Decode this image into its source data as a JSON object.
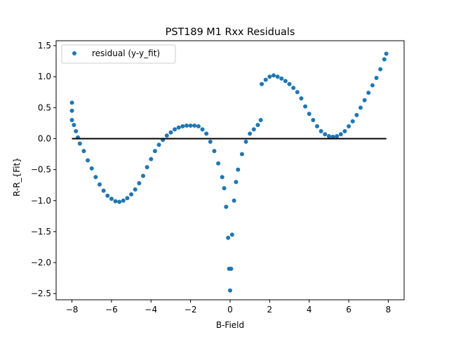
{
  "chart_data": {
    "type": "scatter",
    "title": "PST189 M1 Rxx Residuals",
    "xlabel": "B-Field",
    "ylabel": "R-R_{Fit}",
    "xlim": [
      -8.8,
      8.8
    ],
    "ylim": [
      -2.6,
      1.58
    ],
    "x_ticks": [
      -8,
      -6,
      -4,
      -2,
      0,
      2,
      4,
      6,
      8
    ],
    "x_tick_labels": [
      "−8",
      "−6",
      "−4",
      "−2",
      "0",
      "2",
      "4",
      "6",
      "8"
    ],
    "y_ticks": [
      -2.5,
      -2.0,
      -1.5,
      -1.0,
      -0.5,
      0.0,
      0.5,
      1.0,
      1.5
    ],
    "y_tick_labels": [
      "−2.5",
      "−2.0",
      "−1.5",
      "−1.0",
      "−0.5",
      "0.0",
      "0.5",
      "1.0",
      "1.5"
    ],
    "grid": false,
    "legend_position": "upper-left",
    "series": [
      {
        "name": "residual (y-y_fit)",
        "kind": "scatter",
        "color": "#1f77b4",
        "points": [
          [
            -8.0,
            0.58
          ],
          [
            -8.0,
            0.45
          ],
          [
            -8.0,
            0.3
          ],
          [
            -7.9,
            0.22
          ],
          [
            -7.8,
            0.12
          ],
          [
            -7.7,
            0.02
          ],
          [
            -7.6,
            -0.08
          ],
          [
            -7.4,
            -0.2
          ],
          [
            -7.2,
            -0.35
          ],
          [
            -7.0,
            -0.48
          ],
          [
            -6.8,
            -0.62
          ],
          [
            -6.6,
            -0.74
          ],
          [
            -6.4,
            -0.84
          ],
          [
            -6.2,
            -0.92
          ],
          [
            -6.0,
            -0.97
          ],
          [
            -5.8,
            -1.01
          ],
          [
            -5.6,
            -1.02
          ],
          [
            -5.4,
            -1.0
          ],
          [
            -5.2,
            -0.96
          ],
          [
            -5.0,
            -0.9
          ],
          [
            -4.8,
            -0.82
          ],
          [
            -4.6,
            -0.72
          ],
          [
            -4.4,
            -0.6
          ],
          [
            -4.2,
            -0.46
          ],
          [
            -4.0,
            -0.33
          ],
          [
            -3.8,
            -0.2
          ],
          [
            -3.6,
            -0.1
          ],
          [
            -3.4,
            -0.02
          ],
          [
            -3.2,
            0.05
          ],
          [
            -3.0,
            0.1
          ],
          [
            -2.8,
            0.15
          ],
          [
            -2.6,
            0.18
          ],
          [
            -2.4,
            0.2
          ],
          [
            -2.2,
            0.21
          ],
          [
            -2.0,
            0.21
          ],
          [
            -1.8,
            0.21
          ],
          [
            -1.6,
            0.2
          ],
          [
            -1.4,
            0.15
          ],
          [
            -1.2,
            0.08
          ],
          [
            -1.0,
            -0.05
          ],
          [
            -0.8,
            -0.2
          ],
          [
            -0.6,
            -0.4
          ],
          [
            -0.4,
            -0.62
          ],
          [
            -0.3,
            -0.8
          ],
          [
            -0.2,
            -1.1
          ],
          [
            -0.1,
            -1.6
          ],
          [
            -0.05,
            -2.1
          ],
          [
            0.0,
            -2.45
          ],
          [
            0.05,
            -2.1
          ],
          [
            0.1,
            -1.55
          ],
          [
            0.2,
            -1.0
          ],
          [
            0.3,
            -0.7
          ],
          [
            0.4,
            -0.5
          ],
          [
            0.6,
            -0.25
          ],
          [
            0.8,
            -0.05
          ],
          [
            1.0,
            0.08
          ],
          [
            1.2,
            0.15
          ],
          [
            1.4,
            0.22
          ],
          [
            1.55,
            0.3
          ],
          [
            1.6,
            0.88
          ],
          [
            1.8,
            0.95
          ],
          [
            2.0,
            1.0
          ],
          [
            2.2,
            1.02
          ],
          [
            2.4,
            1.0
          ],
          [
            2.6,
            0.97
          ],
          [
            2.8,
            0.93
          ],
          [
            3.0,
            0.88
          ],
          [
            3.2,
            0.82
          ],
          [
            3.4,
            0.75
          ],
          [
            3.6,
            0.65
          ],
          [
            3.8,
            0.52
          ],
          [
            4.0,
            0.4
          ],
          [
            4.2,
            0.3
          ],
          [
            4.4,
            0.2
          ],
          [
            4.6,
            0.12
          ],
          [
            4.8,
            0.07
          ],
          [
            5.0,
            0.04
          ],
          [
            5.2,
            0.03
          ],
          [
            5.4,
            0.04
          ],
          [
            5.6,
            0.07
          ],
          [
            5.8,
            0.12
          ],
          [
            6.0,
            0.2
          ],
          [
            6.2,
            0.28
          ],
          [
            6.4,
            0.38
          ],
          [
            6.6,
            0.5
          ],
          [
            6.8,
            0.62
          ],
          [
            7.0,
            0.74
          ],
          [
            7.2,
            0.86
          ],
          [
            7.4,
            0.98
          ],
          [
            7.6,
            1.12
          ],
          [
            7.8,
            1.28
          ],
          [
            7.9,
            1.37
          ]
        ]
      },
      {
        "name": "",
        "kind": "line",
        "color": "#000000",
        "points": [
          [
            -8.0,
            0.0
          ],
          [
            7.9,
            0.0
          ]
        ]
      }
    ]
  }
}
